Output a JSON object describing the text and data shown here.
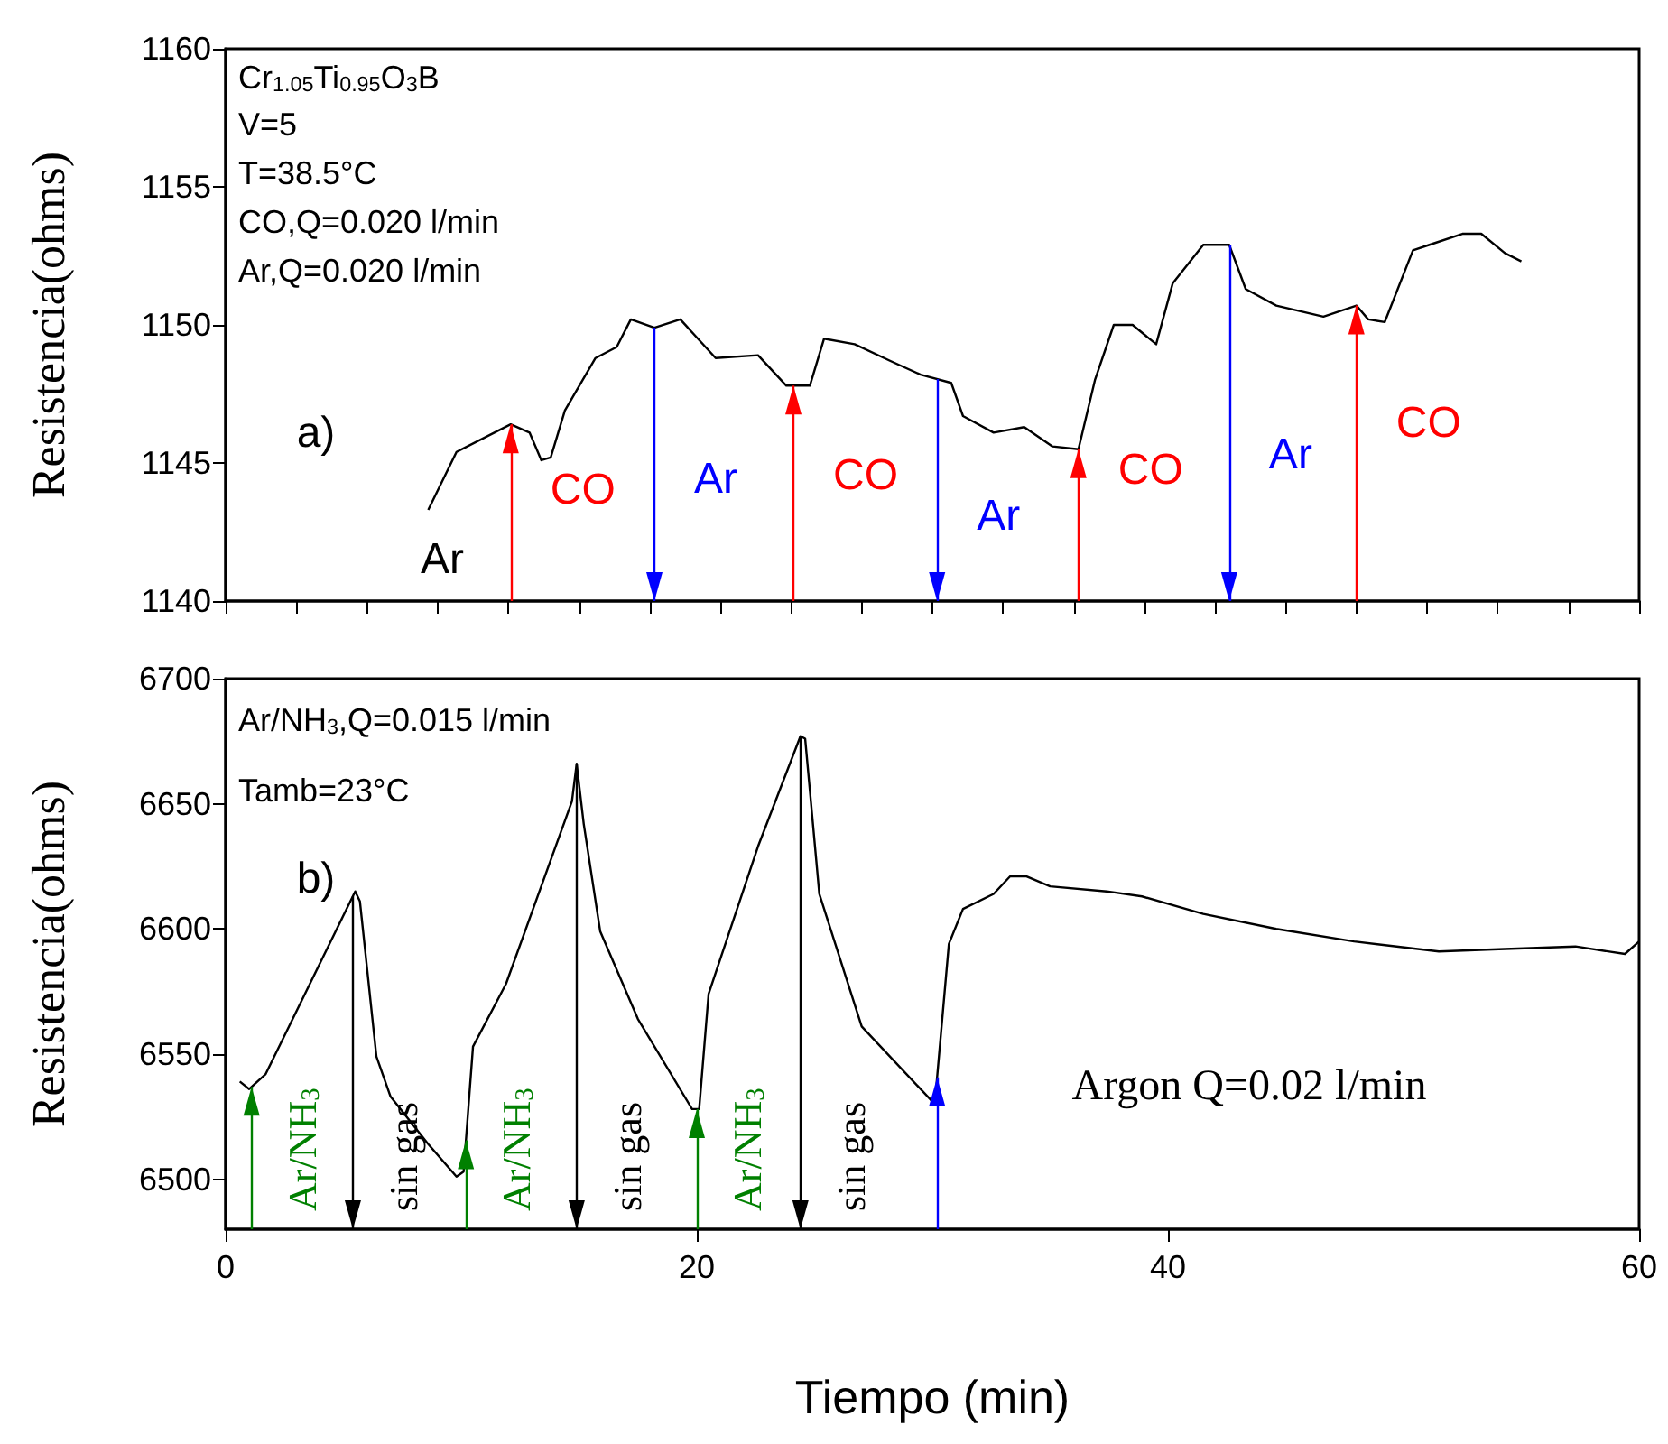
{
  "chart_data": [
    {
      "type": "line",
      "ylabel": "Resistencia(ohms)",
      "color": "#000000",
      "x": [
        8.6,
        9.8,
        12.1,
        12.9,
        13.4,
        13.8,
        14.4,
        15.7,
        16.6,
        17.2,
        18.2,
        19.3,
        20.8,
        22.6,
        23.8,
        24.8,
        25.4,
        26.7,
        28.2,
        29.5,
        30.8,
        31.3,
        32.6,
        33.9,
        35.1,
        36.2,
        36.9,
        37.7,
        38.5,
        39.5,
        40.2,
        41.5,
        42.6,
        43.3,
        44.6,
        46.6,
        48.0,
        48.5,
        49.2,
        50.4,
        51.1,
        52.5,
        53.3,
        54.3,
        55.0
      ],
      "values": [
        1143.3,
        1145.4,
        1146.4,
        1146.1,
        1145.1,
        1145.2,
        1146.9,
        1148.8,
        1149.2,
        1150.2,
        1149.9,
        1150.2,
        1148.8,
        1148.9,
        1147.8,
        1147.8,
        1149.5,
        1149.3,
        1148.7,
        1148.2,
        1147.9,
        1146.7,
        1146.1,
        1146.3,
        1145.6,
        1145.5,
        1148.0,
        1150.0,
        1150.0,
        1149.3,
        1151.5,
        1152.9,
        1152.9,
        1151.3,
        1150.7,
        1150.3,
        1150.7,
        1150.2,
        1150.1,
        1152.7,
        1152.9,
        1153.3,
        1153.3,
        1152.6,
        1152.3
      ],
      "xlim": [
        0,
        60
      ],
      "ylim": [
        1140,
        1160
      ],
      "xticks": [
        {
          "value": 0,
          "label": null
        },
        {
          "value": 3,
          "label": null
        },
        {
          "value": 6,
          "label": null
        },
        {
          "value": 9,
          "label": null
        },
        {
          "value": 12,
          "label": null
        },
        {
          "value": 15,
          "label": null
        },
        {
          "value": 18,
          "label": null
        },
        {
          "value": 21,
          "label": null
        },
        {
          "value": 24,
          "label": null
        },
        {
          "value": 27,
          "label": null
        },
        {
          "value": 30,
          "label": null
        },
        {
          "value": 33,
          "label": null
        },
        {
          "value": 36,
          "label": null
        },
        {
          "value": 39,
          "label": null
        },
        {
          "value": 42,
          "label": null
        },
        {
          "value": 45,
          "label": null
        },
        {
          "value": 48,
          "label": null
        },
        {
          "value": 51,
          "label": null
        },
        {
          "value": 54,
          "label": null
        },
        {
          "value": 57,
          "label": null
        },
        {
          "value": 60,
          "label": null
        }
      ],
      "yticks": [
        1140,
        1145,
        1150,
        1155,
        1160
      ],
      "tick_labels": "y",
      "grid": false,
      "ref_lines": [
        {
          "axis": "x",
          "value": 12.1,
          "color": "#ff0000",
          "label": "CO"
        },
        {
          "axis": "x",
          "value": 18.2,
          "color": "#0000ff",
          "label": "Ar"
        },
        {
          "axis": "x",
          "value": 24.1,
          "color": "#ff0000",
          "label": "CO"
        },
        {
          "axis": "x",
          "value": 30.2,
          "color": "#0000ff",
          "label": "Ar"
        },
        {
          "axis": "x",
          "value": 36.2,
          "color": "#ff0000",
          "label": "CO"
        },
        {
          "axis": "x",
          "value": 42.6,
          "color": "#0000ff",
          "label": "Ar"
        },
        {
          "axis": "x",
          "value": 48.0,
          "color": "#ff0000",
          "label": "CO"
        }
      ],
      "annotations": [
        "Cr$_{1.05}$Ti$_{0.95}$O$_{3}$B",
        "V=5",
        "T=38.5°C",
        "CO,Q=0.020 l/min",
        "Ar,Q=0.020 l/min",
        "a)",
        "Ar"
      ]
    },
    {
      "type": "line",
      "xlabel": "Tiempo (min)",
      "ylabel": "Resistencia(ohms)",
      "color": "#000000",
      "x": [
        0.6,
        1.0,
        1.7,
        5.5,
        5.7,
        6.4,
        7.0,
        8.6,
        9.8,
        10.1,
        10.5,
        11.9,
        14.7,
        14.9,
        15.2,
        15.9,
        17.5,
        19.8,
        20.1,
        20.5,
        22.6,
        24.4,
        24.6,
        25.2,
        27.0,
        30.1,
        30.7,
        31.3,
        32.6,
        33.3,
        34.0,
        35.0,
        37.4,
        38.9,
        41.5,
        44.6,
        47.9,
        51.5,
        54.3,
        57.3,
        59.4,
        60
      ],
      "values": [
        6539,
        6536,
        6542,
        6615,
        6611,
        6549,
        6533,
        6514,
        6501,
        6503,
        6553,
        6578,
        6651,
        6666,
        6642,
        6599,
        6564,
        6528,
        6528,
        6574,
        6633,
        6677,
        6676,
        6614,
        6561,
        6530,
        6594,
        6608,
        6614,
        6621,
        6621,
        6617,
        6615,
        6613,
        6606,
        6600,
        6595,
        6591,
        6592,
        6593,
        6590,
        6595
      ],
      "xlim": [
        0,
        60
      ],
      "ylim": [
        6480,
        6700
      ],
      "xticks": [
        0,
        20,
        40,
        60
      ],
      "yticks": [
        6500,
        6550,
        6600,
        6650,
        6700
      ],
      "grid": false,
      "ref_lines": [
        {
          "axis": "x",
          "value": 1.1,
          "color": "#008000",
          "label": "Ar/NH$_{3}$"
        },
        {
          "axis": "x",
          "value": 5.4,
          "color": "#000000",
          "label": "sin gas"
        },
        {
          "axis": "x",
          "value": 10.2,
          "color": "#008000",
          "label": "Ar/NH$_{3}$"
        },
        {
          "axis": "x",
          "value": 14.9,
          "color": "#000000",
          "label": "sin gas"
        },
        {
          "axis": "x",
          "value": 20.0,
          "color": "#008000",
          "label": "Ar/NH$_{3}$"
        },
        {
          "axis": "x",
          "value": 24.4,
          "color": "#000000",
          "label": "sin gas"
        },
        {
          "axis": "x",
          "value": 30.2,
          "color": "#0000ff"
        }
      ],
      "annotations": [
        "Ar/NH$_{3}$,Q=0.015 l/min",
        "Tamb=23°C",
        "b)",
        "Argon Q=0.02 l/min"
      ]
    }
  ]
}
